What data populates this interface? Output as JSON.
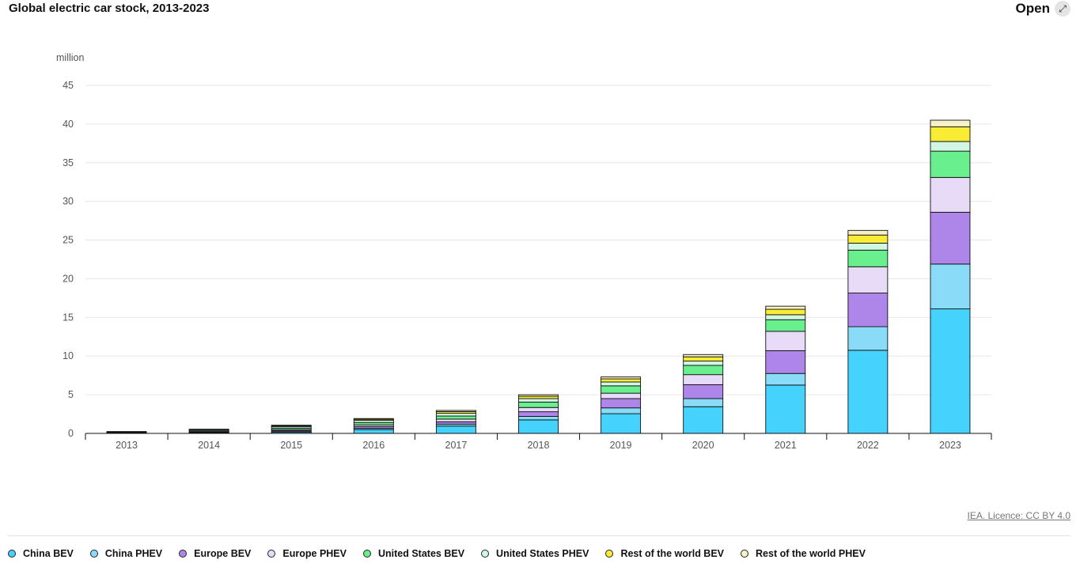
{
  "header": {
    "title": "Global electric car stock, 2013-2023",
    "open_label": "Open",
    "open_icon": "expand-icon"
  },
  "chart_data": {
    "type": "bar",
    "stacked": true,
    "title": "Global electric car stock, 2013-2023",
    "xlabel": "",
    "ylabel": "million",
    "ylim": [
      0,
      45
    ],
    "yticks": [
      0,
      5,
      10,
      15,
      20,
      25,
      30,
      35,
      40,
      45
    ],
    "grid": true,
    "legend_position": "bottom",
    "categories": [
      "2013",
      "2014",
      "2015",
      "2016",
      "2017",
      "2018",
      "2019",
      "2020",
      "2021",
      "2022",
      "2023"
    ],
    "series": [
      {
        "name": "China BEV",
        "color": "#45d3fd",
        "values": [
          0.02,
          0.05,
          0.15,
          0.5,
          0.95,
          1.75,
          2.55,
          3.45,
          6.25,
          10.75,
          16.1
        ]
      },
      {
        "name": "China PHEV",
        "color": "#8adbf8",
        "values": [
          0.01,
          0.03,
          0.07,
          0.15,
          0.25,
          0.45,
          0.75,
          1.05,
          1.5,
          3.05,
          5.8
        ]
      },
      {
        "name": "Europe BEV",
        "color": "#ae86ea",
        "values": [
          0.04,
          0.07,
          0.13,
          0.22,
          0.3,
          0.6,
          1.2,
          1.8,
          2.95,
          4.35,
          6.7
        ]
      },
      {
        "name": "Europe PHEV",
        "color": "#e7dbf8",
        "values": [
          0.03,
          0.06,
          0.14,
          0.22,
          0.35,
          0.55,
          0.7,
          1.3,
          2.5,
          3.4,
          4.5
        ]
      },
      {
        "name": "United States BEV",
        "color": "#69ef8e",
        "values": [
          0.05,
          0.12,
          0.2,
          0.3,
          0.4,
          0.7,
          0.95,
          1.2,
          1.5,
          2.15,
          3.4
        ]
      },
      {
        "name": "United States PHEV",
        "color": "#d2f6e4",
        "values": [
          0.05,
          0.12,
          0.2,
          0.28,
          0.35,
          0.45,
          0.5,
          0.55,
          0.65,
          0.9,
          1.25
        ]
      },
      {
        "name": "Rest of the world BEV",
        "color": "#f8ec35",
        "values": [
          0.02,
          0.05,
          0.1,
          0.15,
          0.22,
          0.3,
          0.4,
          0.55,
          0.7,
          1.05,
          1.9
        ]
      },
      {
        "name": "Rest of the world PHEV",
        "color": "#f6f1c8",
        "values": [
          0.02,
          0.04,
          0.07,
          0.1,
          0.15,
          0.2,
          0.25,
          0.3,
          0.4,
          0.6,
          0.85
        ]
      }
    ]
  },
  "footer": {
    "licence": "IEA. Licence: CC BY 4.0"
  }
}
